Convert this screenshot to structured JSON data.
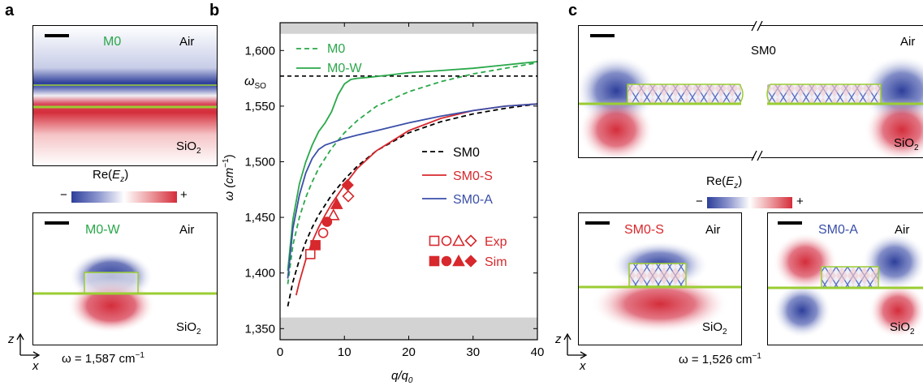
{
  "panels": {
    "a": {
      "letter": "a",
      "top": {
        "mode": "M0",
        "medium_top": "Air",
        "medium_bottom": "SiO",
        "sub": "2"
      },
      "colorbar": {
        "title_pre": "Re(",
        "title_var": "E",
        "title_sub": "z",
        "title_post": ")",
        "minus": "−",
        "plus": "+"
      },
      "bottom": {
        "mode": "M0-W",
        "medium_top": "Air",
        "medium_bottom": "SiO",
        "sub": "2"
      },
      "axes": {
        "z": "z",
        "x": "x"
      },
      "omega": "ω = 1,587 cm",
      "omega_exp": "−1"
    },
    "b": {
      "letter": "b",
      "omega_so": "ω",
      "omega_so_sub": "SO",
      "ylabel": "ω (cm",
      "ylabel_exp": "−1",
      "ylabel_close": ")",
      "xlabel": "q/q",
      "xlabel_sub": "0",
      "legend_exp": "Exp",
      "legend_sim": "Sim"
    },
    "c": {
      "letter": "c",
      "top": {
        "mode": "SM0",
        "medium_top": "Air",
        "medium_bottom": "SiO",
        "sub": "2"
      },
      "colorbar": {
        "title_pre": "Re(",
        "title_var": "E",
        "title_sub": "z",
        "title_post": ")",
        "minus": "−",
        "plus": "+"
      },
      "left": {
        "mode": "SM0-S",
        "medium_top": "Air",
        "medium_bottom": "SiO",
        "sub": "2"
      },
      "right": {
        "mode": "SM0-A",
        "medium_top": "Air",
        "medium_bottom": "SiO",
        "sub": "2"
      },
      "axes": {
        "z": "z",
        "x": "x"
      },
      "omega": "ω = 1,526 cm",
      "omega_exp": "−1"
    }
  },
  "colors": {
    "red": "#d7282d",
    "blue": "#3a4fa8",
    "green": "#2aa84a",
    "lime": "#9acd32",
    "band": "#d3d3d3"
  },
  "chart_data": {
    "type": "line",
    "xlim": [
      0,
      40
    ],
    "ylim": [
      1340,
      1625
    ],
    "xticks": [
      0,
      10,
      20,
      30,
      40
    ],
    "yticks": [
      1350,
      1400,
      1450,
      1500,
      1550,
      1600
    ],
    "ytick_labels": [
      "1,350",
      "1,400",
      "1,450",
      "1,500",
      "1,550",
      "1,600"
    ],
    "shaded_bands": [
      [
        1340,
        1360
      ],
      [
        1615,
        1625
      ]
    ],
    "omega_so": 1577,
    "series": [
      {
        "name": "M0",
        "style": "dashed",
        "color": "#2aa84a",
        "x": [
          1.2,
          2,
          3,
          4,
          5,
          6,
          8,
          10,
          12,
          15,
          20,
          25,
          30,
          35,
          40
        ],
        "y": [
          1390,
          1425,
          1450,
          1468,
          1482,
          1494,
          1512,
          1526,
          1537,
          1550,
          1563,
          1572,
          1579,
          1584,
          1589
        ]
      },
      {
        "name": "M0-W",
        "style": "solid",
        "color": "#2aa84a",
        "x": [
          1.2,
          2,
          3,
          4,
          5,
          6,
          7,
          8,
          9,
          10,
          11,
          12,
          14,
          17,
          20,
          25,
          30,
          35,
          40
        ],
        "y": [
          1402,
          1448,
          1480,
          1500,
          1515,
          1527,
          1535,
          1545,
          1560,
          1570,
          1574,
          1575,
          1576,
          1578,
          1580,
          1582,
          1584,
          1587,
          1590
        ]
      },
      {
        "name": "SM0",
        "style": "dashed",
        "color": "#000000",
        "x": [
          1.2,
          2,
          3,
          4,
          5,
          6,
          8,
          10,
          12,
          15,
          20,
          25,
          30,
          35,
          40
        ],
        "y": [
          1370,
          1392,
          1412,
          1428,
          1441,
          1452,
          1470,
          1484,
          1496,
          1510,
          1526,
          1536,
          1543,
          1548,
          1552
        ]
      },
      {
        "name": "SM0-S",
        "style": "solid",
        "color": "#d7282d",
        "x": [
          2.5,
          3,
          4,
          5,
          6,
          7,
          8,
          10,
          12,
          15,
          20,
          25,
          30,
          35,
          40
        ],
        "y": [
          1380,
          1392,
          1412,
          1428,
          1441,
          1452,
          1462,
          1479,
          1494,
          1510,
          1528,
          1539,
          1546,
          1550,
          1552
        ]
      },
      {
        "name": "SM0-A",
        "style": "solid",
        "color": "#3a4fa8",
        "x": [
          1.2,
          2,
          3,
          4,
          5,
          6,
          7,
          8,
          10,
          12,
          15,
          20,
          25,
          30,
          35,
          40
        ],
        "y": [
          1395,
          1440,
          1470,
          1490,
          1503,
          1511,
          1515,
          1517,
          1521,
          1524,
          1528,
          1535,
          1541,
          1546,
          1550,
          1552
        ]
      }
    ],
    "points": {
      "exp": [
        {
          "shape": "square",
          "x": 4.7,
          "y": 1417
        },
        {
          "shape": "circle",
          "x": 6.7,
          "y": 1436
        },
        {
          "shape": "triangle",
          "x": 8.3,
          "y": 1452
        },
        {
          "shape": "diamond",
          "x": 10.6,
          "y": 1469
        }
      ],
      "sim": [
        {
          "shape": "square",
          "x": 5.5,
          "y": 1425
        },
        {
          "shape": "circle",
          "x": 7.3,
          "y": 1446
        },
        {
          "shape": "triangle",
          "x": 8.8,
          "y": 1462
        },
        {
          "shape": "diamond",
          "x": 10.5,
          "y": 1479
        }
      ]
    }
  }
}
